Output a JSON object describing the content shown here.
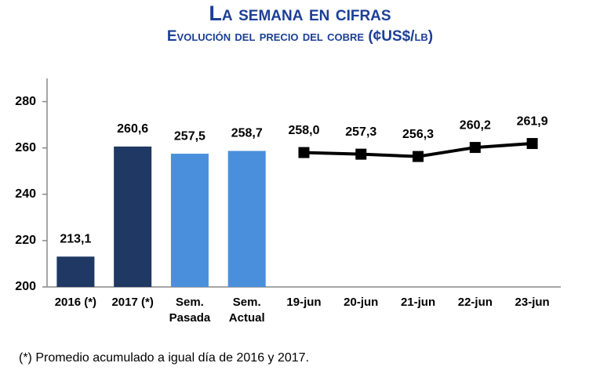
{
  "chart_data": {
    "type": "bar",
    "title": "La semana en cifras",
    "subtitle": "Evolución del precio del cobre  (¢US$/lb)",
    "categories": [
      "2016 (*)",
      "2017 (*)",
      "Sem. Pasada",
      "Sem. Actual",
      "19-jun",
      "20-jun",
      "21-jun",
      "22-jun",
      "23-jun"
    ],
    "series": [
      {
        "type": "bar",
        "colors": [
          "#1f3864",
          "#1f3864",
          "#4a8fdc",
          "#4a8fdc",
          null,
          null,
          null,
          null,
          null
        ],
        "values": [
          213.1,
          260.6,
          257.5,
          258.7,
          null,
          null,
          null,
          null,
          null
        ],
        "value_labels": [
          "213,1",
          "260,6",
          "257,5",
          "258,7",
          null,
          null,
          null,
          null,
          null
        ]
      },
      {
        "type": "line",
        "color": "#000000",
        "values": [
          null,
          null,
          null,
          null,
          258.0,
          257.3,
          256.3,
          260.2,
          261.9
        ],
        "value_labels": [
          null,
          null,
          null,
          null,
          "258,0",
          "257,3",
          "256,3",
          "260,2",
          "261,9"
        ]
      }
    ],
    "ylim": [
      200,
      290
    ],
    "yticks": [
      200,
      220,
      240,
      260,
      280
    ],
    "grid": false,
    "note": "(*) Promedio acumulado a igual día de 2016 y 2017."
  }
}
